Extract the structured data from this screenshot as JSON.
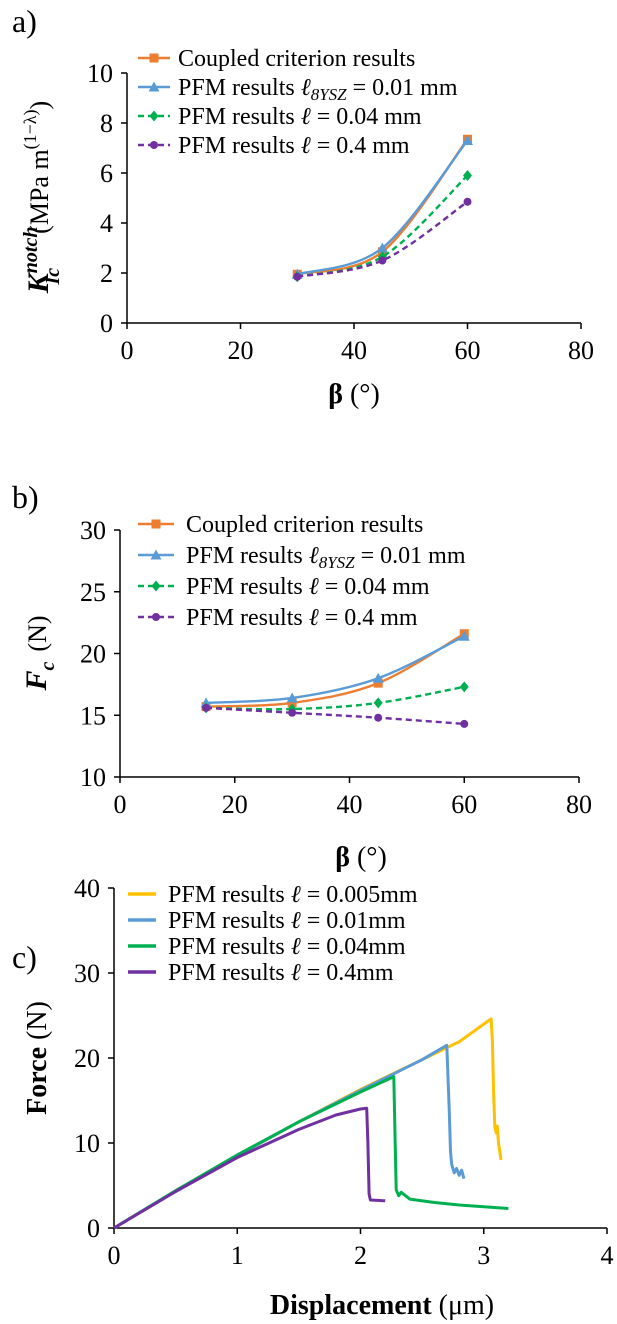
{
  "colors": {
    "coupled": "#ED7D31",
    "pfm_001": "#5B9BD5",
    "pfm_004": "#00B050",
    "pfm_04": "#7030A0",
    "pfm_0005": "#FFC000"
  },
  "chart_data": [
    {
      "id": "a",
      "panel_label": "a)",
      "type": "line",
      "xlabel": {
        "bold": "β",
        "rest": " (°)"
      },
      "ylabel": {
        "main": "K",
        "sup": "notch",
        "sub": "Ic",
        "unit_pre": "(MPa m",
        "unit_sup": "(1−λ)",
        "unit_post": ")"
      },
      "xlim": [
        0,
        80
      ],
      "ylim": [
        0,
        10
      ],
      "xticks": [
        "0",
        "20",
        "40",
        "60",
        "80"
      ],
      "yticks": [
        "0",
        "2",
        "4",
        "6",
        "8",
        "10"
      ],
      "series": [
        {
          "name": "Coupled criterion results",
          "name_parts": [
            "Coupled criterion results"
          ],
          "color": "#ED7D31",
          "marker": "square",
          "dashed": false,
          "x": [
            30,
            45,
            60
          ],
          "y": [
            1.95,
            2.85,
            7.35
          ]
        },
        {
          "name": "PFM results ℓ8YSZ = 0.01 mm",
          "name_parts": [
            "PFM results ",
            "ℓ",
            "8YSZ",
            " = 0.01 mm"
          ],
          "color": "#5B9BD5",
          "marker": "triangle",
          "dashed": false,
          "x": [
            30,
            45,
            60
          ],
          "y": [
            1.95,
            3.0,
            7.3
          ]
        },
        {
          "name": "PFM results ℓ = 0.04 mm",
          "name_parts": [
            "PFM results ",
            "ℓ",
            "",
            " = 0.04 mm"
          ],
          "color": "#00B050",
          "marker": "diamond",
          "dashed": true,
          "x": [
            30,
            45,
            60
          ],
          "y": [
            1.85,
            2.65,
            5.9
          ]
        },
        {
          "name": "PFM results ℓ = 0.4 mm",
          "name_parts": [
            "PFM results ",
            "ℓ",
            "",
            " = 0.4 mm"
          ],
          "color": "#7030A0",
          "marker": "circle",
          "dashed": true,
          "x": [
            30,
            45,
            60
          ],
          "y": [
            1.85,
            2.5,
            4.85
          ]
        }
      ],
      "legend": "top-left",
      "grid": false
    },
    {
      "id": "b",
      "panel_label": "b)",
      "type": "line",
      "xlabel": {
        "bold": "β",
        "rest": " (°)"
      },
      "ylabel": {
        "main": "F",
        "sub": "c",
        "unit": "(N)"
      },
      "xlim": [
        0,
        80
      ],
      "ylim": [
        10,
        30
      ],
      "xticks": [
        "0",
        "20",
        "40",
        "60",
        "80"
      ],
      "yticks": [
        "10",
        "15",
        "20",
        "25",
        "30"
      ],
      "series": [
        {
          "name": "Coupled criterion results",
          "name_parts": [
            "Coupled criterion results"
          ],
          "color": "#ED7D31",
          "marker": "square",
          "dashed": false,
          "x": [
            15,
            30,
            45,
            60
          ],
          "y": [
            15.7,
            16.0,
            17.6,
            21.6
          ]
        },
        {
          "name": "PFM results ℓ8YSZ = 0.01 mm",
          "name_parts": [
            "PFM results ",
            "ℓ",
            "8YSZ",
            " = 0.01 mm"
          ],
          "color": "#5B9BD5",
          "marker": "triangle",
          "dashed": false,
          "x": [
            15,
            30,
            45,
            60
          ],
          "y": [
            16.0,
            16.4,
            18.0,
            21.4
          ]
        },
        {
          "name": "PFM results ℓ = 0.04 mm",
          "name_parts": [
            "PFM results ",
            "ℓ",
            "",
            " = 0.04 mm"
          ],
          "color": "#00B050",
          "marker": "diamond",
          "dashed": true,
          "x": [
            15,
            30,
            45,
            60
          ],
          "y": [
            15.6,
            15.5,
            16.0,
            17.3
          ]
        },
        {
          "name": "PFM results ℓ = 0.4 mm",
          "name_parts": [
            "PFM results ",
            "ℓ",
            "",
            " = 0.4 mm"
          ],
          "color": "#7030A0",
          "marker": "circle",
          "dashed": true,
          "x": [
            15,
            30,
            45,
            60
          ],
          "y": [
            15.6,
            15.2,
            14.8,
            14.3
          ]
        }
      ],
      "legend": "top-left",
      "grid": false
    },
    {
      "id": "c",
      "panel_label": "c)",
      "type": "line",
      "xlabel": {
        "bold": "Displacement",
        "rest": " (μm)"
      },
      "ylabel": {
        "bold": "Force",
        "rest": " (N)"
      },
      "xlim": [
        0,
        4
      ],
      "ylim": [
        0,
        40
      ],
      "xticks": [
        "0",
        "1",
        "2",
        "3",
        "4"
      ],
      "yticks": [
        "0",
        "10",
        "20",
        "30",
        "40"
      ],
      "series": [
        {
          "name": "PFM results ℓ = 0.005mm",
          "name_parts": [
            "PFM results ",
            "ℓ",
            "",
            " = 0.005mm"
          ],
          "color": "#FFC000",
          "x": [
            0,
            0.5,
            1.0,
            1.5,
            2.0,
            2.5,
            2.8,
            3.06,
            3.07,
            3.08,
            3.09,
            3.1,
            3.11,
            3.12,
            3.13,
            3.14
          ],
          "y": [
            0,
            4.3,
            8.5,
            12.5,
            16.3,
            19.8,
            21.9,
            24.6,
            22.0,
            16.0,
            12.0,
            11.2,
            12.0,
            10.0,
            9.0,
            8.0
          ]
        },
        {
          "name": "PFM results ℓ = 0.01mm",
          "name_parts": [
            "PFM results ",
            "ℓ",
            "",
            " = 0.01mm"
          ],
          "color": "#5B9BD5",
          "x": [
            0,
            0.5,
            1.0,
            1.5,
            2.0,
            2.5,
            2.7,
            2.72,
            2.73,
            2.74,
            2.76,
            2.78,
            2.8,
            2.82,
            2.84
          ],
          "y": [
            0,
            4.3,
            8.5,
            12.5,
            16.2,
            19.8,
            21.5,
            14.0,
            9.0,
            7.5,
            6.5,
            7.0,
            6.2,
            6.8,
            5.8
          ]
        },
        {
          "name": "PFM results ℓ = 0.04mm",
          "name_parts": [
            "PFM results ",
            "ℓ",
            "",
            " = 0.04mm"
          ],
          "color": "#00B050",
          "x": [
            0,
            0.5,
            1.0,
            1.5,
            2.0,
            2.27,
            2.28,
            2.29,
            2.31,
            2.33,
            2.4,
            2.6,
            2.8,
            3.0,
            3.2
          ],
          "y": [
            0,
            4.4,
            8.6,
            12.5,
            16.0,
            17.8,
            11.0,
            4.5,
            3.8,
            4.2,
            3.4,
            3.0,
            2.7,
            2.5,
            2.3
          ]
        },
        {
          "name": "PFM results ℓ = 0.4mm",
          "name_parts": [
            "PFM results ",
            "ℓ",
            "",
            " = 0.4mm"
          ],
          "color": "#7030A0",
          "x": [
            0,
            0.5,
            1.0,
            1.5,
            1.8,
            2.0,
            2.05,
            2.06,
            2.07,
            2.08,
            2.2
          ],
          "y": [
            0,
            4.3,
            8.3,
            11.6,
            13.3,
            14.0,
            14.1,
            10.0,
            4.0,
            3.3,
            3.2
          ]
        }
      ],
      "legend": "top-left",
      "grid": false
    }
  ]
}
